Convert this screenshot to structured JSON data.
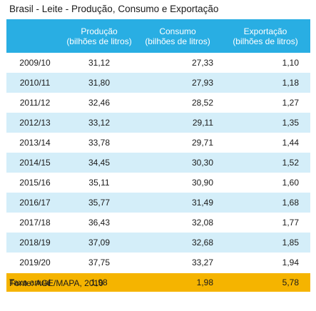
{
  "title": "Brasil - Leite - Produção, Consumo e Exportação",
  "table": {
    "headers": [
      {
        "line1": "",
        "line2": ""
      },
      {
        "line1": "Produção",
        "line2": "(bilhões de litros)"
      },
      {
        "line1": "Consumo",
        "line2": "(bilhões de litros)"
      },
      {
        "line1": "Exportação",
        "line2": "(bilhões de litros)"
      }
    ],
    "rows": [
      [
        "2009/10",
        "31,12",
        "27,33",
        "1,10"
      ],
      [
        "2010/11",
        "31,80",
        "27,93",
        "1,18"
      ],
      [
        "2011/12",
        "32,46",
        "28,52",
        "1,27"
      ],
      [
        "2012/13",
        "33,12",
        "29,11",
        "1,35"
      ],
      [
        "2013/14",
        "33,78",
        "29,71",
        "1,44"
      ],
      [
        "2014/15",
        "34,45",
        "30,30",
        "1,52"
      ],
      [
        "2015/16",
        "35,11",
        "30,90",
        "1,60"
      ],
      [
        "2016/17",
        "35,77",
        "31,49",
        "1,68"
      ],
      [
        "2017/18",
        "36,43",
        "32,08",
        "1,77"
      ],
      [
        "2018/19",
        "37,09",
        "32,68",
        "1,85"
      ],
      [
        "2019/20",
        "37,75",
        "33,27",
        "1,94"
      ]
    ],
    "footer": [
      "Taxa anual",
      "1,98",
      "1,98",
      "5,78"
    ]
  },
  "source": "Fonte: AGE/MAPA, 2010",
  "colors": {
    "header_bg": "#29aee3",
    "row_alt_bg": "#d4eef9",
    "footer_bg": "#f5b400"
  }
}
